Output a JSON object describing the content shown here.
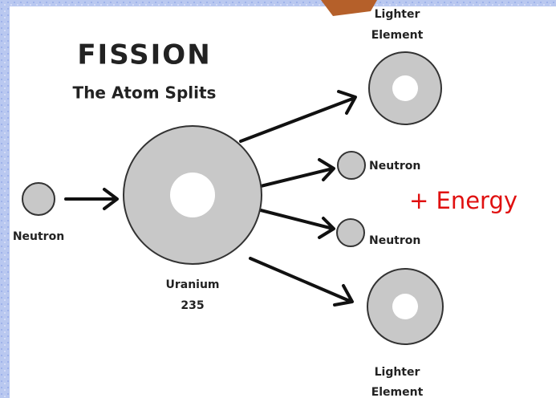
{
  "title": "FISSION",
  "subtitle": "The Atom Splits",
  "nodes": [
    {
      "label": [
        "Neutron"
      ]
    },
    {
      "label": [
        "Uranium",
        "235"
      ]
    },
    {
      "label": [
        "Lighter",
        "Element"
      ]
    },
    {
      "label": [
        "Neutron"
      ]
    },
    {
      "label": [
        "Neutron"
      ]
    },
    {
      "label": [
        "Lighter",
        "Element"
      ]
    }
  ],
  "energy": "+ Energy"
}
